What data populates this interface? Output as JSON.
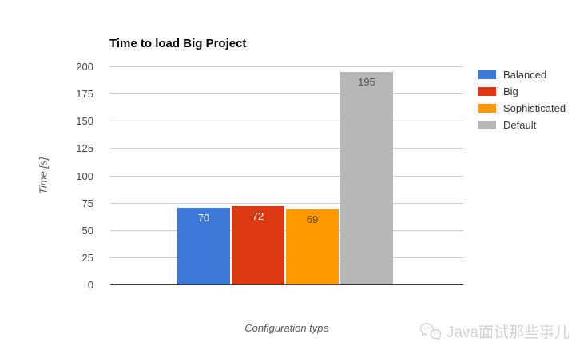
{
  "watermark": {
    "text": "Java面试那些事儿",
    "icon": "wechat-icon"
  },
  "chart_data": {
    "type": "bar",
    "title": "Time to load Big Project",
    "xlabel": "Configuration type",
    "ylabel": "Time [s]",
    "ylim": [
      0,
      200
    ],
    "yticks": [
      0,
      25,
      50,
      75,
      100,
      125,
      150,
      175,
      200
    ],
    "grid": true,
    "legend_position": "right",
    "background": "#ffffff",
    "gridline_color": "#cccccc",
    "series": [
      {
        "name": "Balanced",
        "value": 70,
        "color": "#3c78d8",
        "value_label_color": "#ffffff"
      },
      {
        "name": "Big",
        "value": 72,
        "color": "#dc3912",
        "value_label_color": "#ffffff"
      },
      {
        "name": "Sophisticated",
        "value": 69,
        "color": "#ff9900",
        "value_label_color": "#5f4700"
      },
      {
        "name": "Default",
        "value": 195,
        "color": "#b7b7b7",
        "value_label_color": "#4f4f4f"
      }
    ]
  }
}
